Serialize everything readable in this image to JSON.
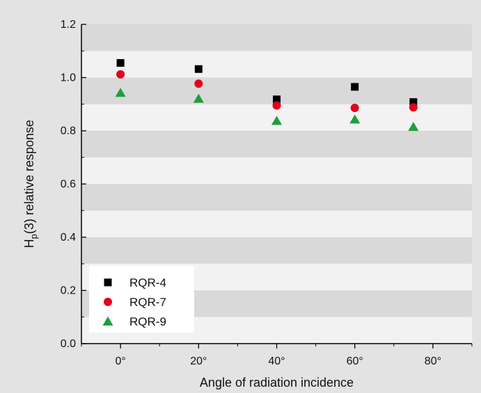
{
  "chart_data": {
    "type": "scatter",
    "title": "",
    "xlabel": "Angle of radiation incidence",
    "ylabel": {
      "prefix": "H",
      "subscript": "p",
      "suffix": "(3) relative response"
    },
    "x_range": [
      -10,
      90
    ],
    "ylim": [
      0.0,
      1.2
    ],
    "x_ticks": [
      0,
      20,
      40,
      60,
      80
    ],
    "x_tick_labels": [
      "0°",
      "20°",
      "40°",
      "60°",
      "80°"
    ],
    "y_ticks": [
      0.0,
      0.2,
      0.4,
      0.6,
      0.8,
      1.0,
      1.2
    ],
    "y_tick_labels": [
      "0.0",
      "0.2",
      "0.4",
      "0.6",
      "0.8",
      "1.0",
      "1.2"
    ],
    "background": "alternating light gray bands",
    "legend_position": "bottom-left",
    "series": [
      {
        "name": "RQR-4",
        "marker": "square",
        "color": "#000000",
        "x": [
          0,
          20,
          40,
          60,
          75
        ],
        "y": [
          1.055,
          1.032,
          0.918,
          0.965,
          0.908
        ]
      },
      {
        "name": "RQR-7",
        "marker": "circle",
        "color": "#e3001b",
        "x": [
          0,
          20,
          40,
          60,
          75
        ],
        "y": [
          1.012,
          0.977,
          0.895,
          0.886,
          0.888
        ]
      },
      {
        "name": "RQR-9",
        "marker": "triangle",
        "color": "#1e9e3c",
        "x": [
          0,
          20,
          40,
          60,
          75
        ],
        "y": [
          0.943,
          0.921,
          0.838,
          0.843,
          0.815
        ]
      }
    ]
  }
}
